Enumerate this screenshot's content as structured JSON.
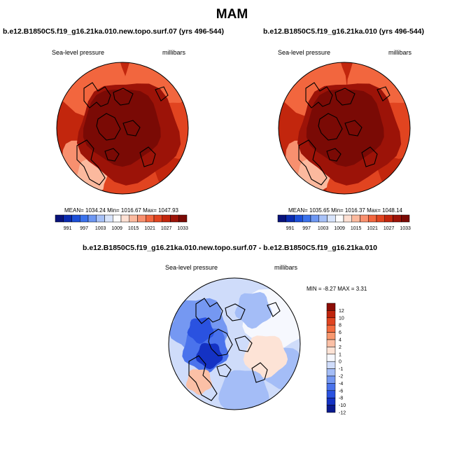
{
  "main_title": "MAM",
  "colors": {
    "abs_scale": [
      "#08127a",
      "#0a2bb0",
      "#1c4fd8",
      "#3a72ec",
      "#6e97f2",
      "#a7c1f7",
      "#d8e4fb",
      "#fdfdfd",
      "#fde0d3",
      "#fbb99e",
      "#f8906f",
      "#f2663e",
      "#e14420",
      "#c2260d",
      "#9c1308",
      "#7a0a05"
    ],
    "diff_scale": [
      "#0a1a8f",
      "#1432c4",
      "#2a52e0",
      "#4a73ec",
      "#7598f2",
      "#a4bdf7",
      "#cfdcfa",
      "#f6f8fe",
      "#fde3d6",
      "#fbc0a6",
      "#f8986f",
      "#f36b3f",
      "#e04420",
      "#bf240c",
      "#8c0d06"
    ]
  },
  "chart_data": [
    {
      "type": "heatmap",
      "title": "b.e12.B1850C5.f19_g16.21ka.010.new.topo.surf.07 (yrs 496-544)",
      "left_label": "Sea-level pressure",
      "right_label": "millibars",
      "stats": "MEAN= 1034.24  Min= 1016.67  Max= 1047.93",
      "stat_values": {
        "mean": 1034.24,
        "min": 1016.67,
        "max": 1047.93
      },
      "colorbar_ticks": [
        "991",
        "997",
        "1003",
        "1009",
        "1015",
        "1021",
        "1027",
        "1033"
      ],
      "projection": "north-polar-stereographic"
    },
    {
      "type": "heatmap",
      "title": "b.e12.B1850C5.f19_g16.21ka.010 (yrs 496-544)",
      "left_label": "Sea-level pressure",
      "right_label": "millibars",
      "stats": "MEAN= 1035.65  Min= 1016.37  Max= 1048.14",
      "stat_values": {
        "mean": 1035.65,
        "min": 1016.37,
        "max": 1048.14
      },
      "colorbar_ticks": [
        "991",
        "997",
        "1003",
        "1009",
        "1015",
        "1021",
        "1027",
        "1033"
      ],
      "projection": "north-polar-stereographic"
    },
    {
      "type": "heatmap",
      "title": "b.e12.B1850C5.f19_g16.21ka.010.new.topo.surf.07 - b.e12.B1850C5.f19_g16.21ka.010",
      "left_label": "Sea-level pressure",
      "right_label": "millibars",
      "stats": "MIN =  -8.27 MAX =   3.31",
      "stat_values": {
        "min": -8.27,
        "max": 3.31
      },
      "colorbar_ticks": [
        "12",
        "10",
        "8",
        "6",
        "4",
        "2",
        "1",
        "0",
        "-1",
        "-2",
        "-4",
        "-6",
        "-8",
        "-10",
        "-12"
      ],
      "projection": "north-polar-stereographic"
    }
  ]
}
